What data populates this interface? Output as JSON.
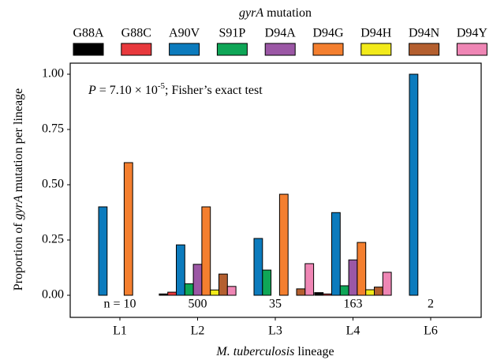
{
  "chart_data": {
    "type": "bar",
    "legend_title": {
      "italic": "gyrA",
      "text": "mutation"
    },
    "y_label": {
      "before": "Proportion of",
      "italic": "gyrA",
      "after": "mutation per lineage"
    },
    "x_label": {
      "italic": "M. tuberculosis",
      "text": "lineage"
    },
    "annotation": {
      "italic": "P",
      "text": "= 7.10 × 10",
      "sup": "-5",
      "after": "; Fisher’s exact test"
    },
    "categories": [
      "L1",
      "L2",
      "L3",
      "L4",
      "L6"
    ],
    "n_labels": [
      "n = 10",
      "500",
      "35",
      "163",
      "2"
    ],
    "series": [
      {
        "name": "G88A",
        "color": "#000000",
        "values": [
          0,
          0.006,
          0,
          0.012,
          0
        ]
      },
      {
        "name": "G88C",
        "color": "#e8393d",
        "values": [
          0,
          0.014,
          0,
          0.006,
          0
        ]
      },
      {
        "name": "A90V",
        "color": "#0c7bbd",
        "values": [
          0.4,
          0.228,
          0.257,
          0.374,
          1
        ]
      },
      {
        "name": "S91P",
        "color": "#0fa657",
        "values": [
          0,
          0.052,
          0.114,
          0.043,
          0
        ]
      },
      {
        "name": "D94A",
        "color": "#9b57a5",
        "values": [
          0,
          0.14,
          0,
          0.16,
          0
        ]
      },
      {
        "name": "D94G",
        "color": "#f47f2f",
        "values": [
          0.6,
          0.4,
          0.457,
          0.239,
          0
        ]
      },
      {
        "name": "D94H",
        "color": "#f2ea1a",
        "values": [
          0,
          0.024,
          0,
          0.025,
          0
        ]
      },
      {
        "name": "D94N",
        "color": "#b45f2f",
        "values": [
          0,
          0.096,
          0.029,
          0.037,
          0
        ]
      },
      {
        "name": "D94Y",
        "color": "#ef86b5",
        "values": [
          0,
          0.04,
          0.143,
          0.104,
          0
        ]
      }
    ],
    "ylim": [
      -0.1,
      1.05
    ],
    "yticks": [
      {
        "value": 0,
        "label": "0.00"
      },
      {
        "value": 0.25,
        "label": "0.25"
      },
      {
        "value": 0.5,
        "label": "0.50"
      },
      {
        "value": 0.75,
        "label": "0.75"
      },
      {
        "value": 1,
        "label": "1.00"
      }
    ]
  }
}
